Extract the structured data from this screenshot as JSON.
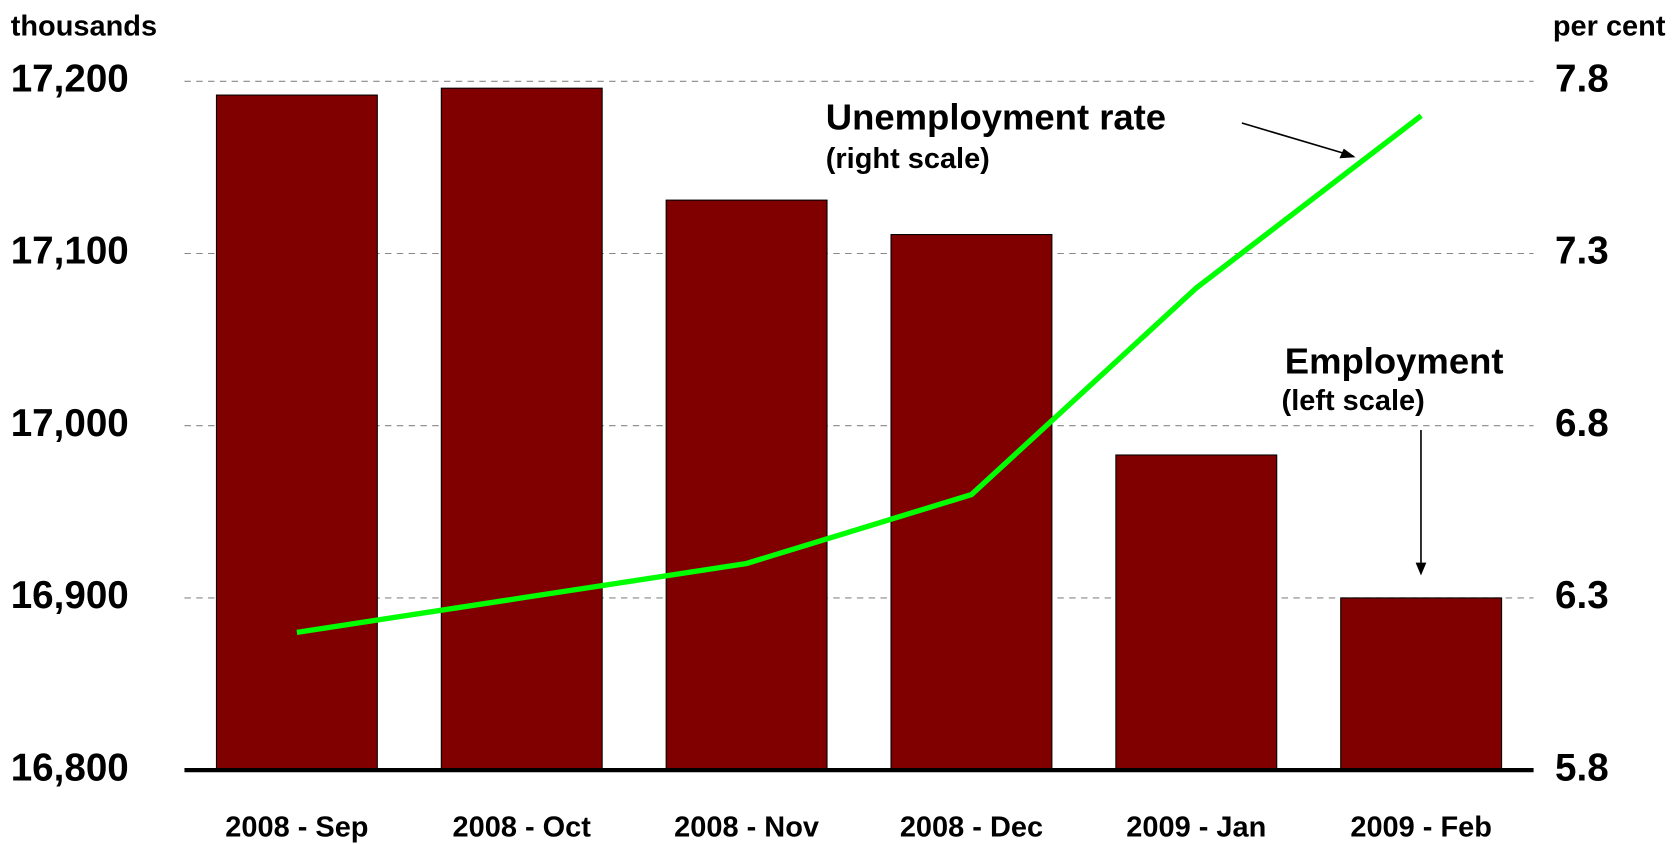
{
  "chart_data": {
    "type": "bar_line",
    "ylabel": "thousands",
    "y2label": "per cent",
    "categories": [
      "2008 - Sep",
      "2008 - Oct",
      "2008 - Nov",
      "2008 - Dec",
      "2009 - Jan",
      "2009 - Feb"
    ],
    "series": [
      {
        "name": "Employment",
        "type": "bar",
        "color": "#800000",
        "values": [
          17192,
          17196,
          17131,
          17111,
          16983,
          16900
        ]
      },
      {
        "name": "Unemployment rate",
        "type": "line",
        "axis": "y2",
        "color": "#00ff00",
        "values": [
          6.2,
          6.3,
          6.4,
          6.6,
          7.2,
          7.7
        ]
      }
    ],
    "annotations": [
      {
        "text": "Unemployment rate",
        "subtext": "(right scale)"
      },
      {
        "text": "Employment",
        "subtext": "(left scale)"
      }
    ],
    "ylim": [
      16800,
      17200
    ],
    "yticks": [
      {
        "value": 16800,
        "label": "16,800"
      },
      {
        "value": 16900,
        "label": "16,900"
      },
      {
        "value": 17000,
        "label": "17,000"
      },
      {
        "value": 17100,
        "label": "17,100"
      },
      {
        "value": 17200,
        "label": "17,200"
      }
    ],
    "y2lim": [
      5.8,
      7.8
    ],
    "y2ticks": [
      5.8,
      6.3,
      6.8,
      7.3,
      7.8
    ],
    "grid": true
  }
}
